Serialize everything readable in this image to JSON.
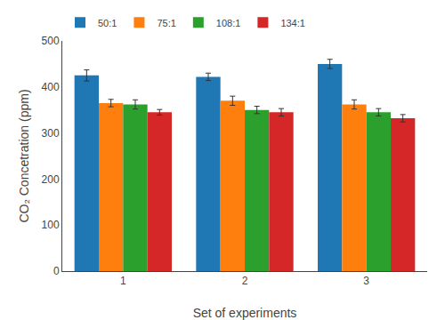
{
  "chart_data": {
    "type": "bar",
    "xlabel": "Set of experiments",
    "ylabel": "CO₂ Concetration (ppm)",
    "categories": [
      "1",
      "2",
      "3"
    ],
    "series": [
      {
        "name": "50:1",
        "values": [
          425,
          422,
          450
        ],
        "errors": [
          12,
          8,
          10
        ]
      },
      {
        "name": "75:1",
        "values": [
          365,
          370,
          362
        ],
        "errors": [
          8,
          10,
          10
        ]
      },
      {
        "name": "108:1",
        "values": [
          362,
          350,
          345
        ],
        "errors": [
          10,
          8,
          8
        ]
      },
      {
        "name": "134:1",
        "values": [
          345,
          345,
          332
        ],
        "errors": [
          6,
          8,
          8
        ]
      }
    ],
    "ylim": [
      0,
      500
    ],
    "yticks": [
      0,
      100,
      200,
      300,
      400,
      500
    ],
    "grid": false,
    "legend": "upper left"
  }
}
